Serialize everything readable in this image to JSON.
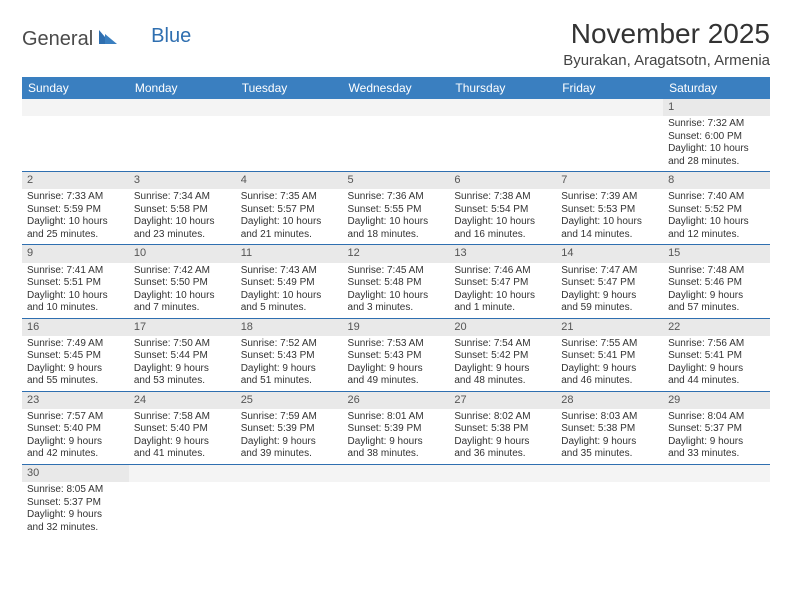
{
  "logo": {
    "part1": "General",
    "part2": "Blue"
  },
  "title": "November 2025",
  "location": "Byurakan, Aragatsotn, Armenia",
  "colors": {
    "header_bg": "#3a7fc0",
    "header_fg": "#ffffff",
    "daynum_bg": "#e9e9e9",
    "rule": "#2f6fb0",
    "logo_gray": "#4a4a4a",
    "logo_blue": "#2f6fb0"
  },
  "weekdays": [
    "Sunday",
    "Monday",
    "Tuesday",
    "Wednesday",
    "Thursday",
    "Friday",
    "Saturday"
  ],
  "weeks": [
    [
      null,
      null,
      null,
      null,
      null,
      null,
      {
        "n": "1",
        "sr": "Sunrise: 7:32 AM",
        "ss": "Sunset: 6:00 PM",
        "dl1": "Daylight: 10 hours",
        "dl2": "and 28 minutes."
      }
    ],
    [
      {
        "n": "2",
        "sr": "Sunrise: 7:33 AM",
        "ss": "Sunset: 5:59 PM",
        "dl1": "Daylight: 10 hours",
        "dl2": "and 25 minutes."
      },
      {
        "n": "3",
        "sr": "Sunrise: 7:34 AM",
        "ss": "Sunset: 5:58 PM",
        "dl1": "Daylight: 10 hours",
        "dl2": "and 23 minutes."
      },
      {
        "n": "4",
        "sr": "Sunrise: 7:35 AM",
        "ss": "Sunset: 5:57 PM",
        "dl1": "Daylight: 10 hours",
        "dl2": "and 21 minutes."
      },
      {
        "n": "5",
        "sr": "Sunrise: 7:36 AM",
        "ss": "Sunset: 5:55 PM",
        "dl1": "Daylight: 10 hours",
        "dl2": "and 18 minutes."
      },
      {
        "n": "6",
        "sr": "Sunrise: 7:38 AM",
        "ss": "Sunset: 5:54 PM",
        "dl1": "Daylight: 10 hours",
        "dl2": "and 16 minutes."
      },
      {
        "n": "7",
        "sr": "Sunrise: 7:39 AM",
        "ss": "Sunset: 5:53 PM",
        "dl1": "Daylight: 10 hours",
        "dl2": "and 14 minutes."
      },
      {
        "n": "8",
        "sr": "Sunrise: 7:40 AM",
        "ss": "Sunset: 5:52 PM",
        "dl1": "Daylight: 10 hours",
        "dl2": "and 12 minutes."
      }
    ],
    [
      {
        "n": "9",
        "sr": "Sunrise: 7:41 AM",
        "ss": "Sunset: 5:51 PM",
        "dl1": "Daylight: 10 hours",
        "dl2": "and 10 minutes."
      },
      {
        "n": "10",
        "sr": "Sunrise: 7:42 AM",
        "ss": "Sunset: 5:50 PM",
        "dl1": "Daylight: 10 hours",
        "dl2": "and 7 minutes."
      },
      {
        "n": "11",
        "sr": "Sunrise: 7:43 AM",
        "ss": "Sunset: 5:49 PM",
        "dl1": "Daylight: 10 hours",
        "dl2": "and 5 minutes."
      },
      {
        "n": "12",
        "sr": "Sunrise: 7:45 AM",
        "ss": "Sunset: 5:48 PM",
        "dl1": "Daylight: 10 hours",
        "dl2": "and 3 minutes."
      },
      {
        "n": "13",
        "sr": "Sunrise: 7:46 AM",
        "ss": "Sunset: 5:47 PM",
        "dl1": "Daylight: 10 hours",
        "dl2": "and 1 minute."
      },
      {
        "n": "14",
        "sr": "Sunrise: 7:47 AM",
        "ss": "Sunset: 5:47 PM",
        "dl1": "Daylight: 9 hours",
        "dl2": "and 59 minutes."
      },
      {
        "n": "15",
        "sr": "Sunrise: 7:48 AM",
        "ss": "Sunset: 5:46 PM",
        "dl1": "Daylight: 9 hours",
        "dl2": "and 57 minutes."
      }
    ],
    [
      {
        "n": "16",
        "sr": "Sunrise: 7:49 AM",
        "ss": "Sunset: 5:45 PM",
        "dl1": "Daylight: 9 hours",
        "dl2": "and 55 minutes."
      },
      {
        "n": "17",
        "sr": "Sunrise: 7:50 AM",
        "ss": "Sunset: 5:44 PM",
        "dl1": "Daylight: 9 hours",
        "dl2": "and 53 minutes."
      },
      {
        "n": "18",
        "sr": "Sunrise: 7:52 AM",
        "ss": "Sunset: 5:43 PM",
        "dl1": "Daylight: 9 hours",
        "dl2": "and 51 minutes."
      },
      {
        "n": "19",
        "sr": "Sunrise: 7:53 AM",
        "ss": "Sunset: 5:43 PM",
        "dl1": "Daylight: 9 hours",
        "dl2": "and 49 minutes."
      },
      {
        "n": "20",
        "sr": "Sunrise: 7:54 AM",
        "ss": "Sunset: 5:42 PM",
        "dl1": "Daylight: 9 hours",
        "dl2": "and 48 minutes."
      },
      {
        "n": "21",
        "sr": "Sunrise: 7:55 AM",
        "ss": "Sunset: 5:41 PM",
        "dl1": "Daylight: 9 hours",
        "dl2": "and 46 minutes."
      },
      {
        "n": "22",
        "sr": "Sunrise: 7:56 AM",
        "ss": "Sunset: 5:41 PM",
        "dl1": "Daylight: 9 hours",
        "dl2": "and 44 minutes."
      }
    ],
    [
      {
        "n": "23",
        "sr": "Sunrise: 7:57 AM",
        "ss": "Sunset: 5:40 PM",
        "dl1": "Daylight: 9 hours",
        "dl2": "and 42 minutes."
      },
      {
        "n": "24",
        "sr": "Sunrise: 7:58 AM",
        "ss": "Sunset: 5:40 PM",
        "dl1": "Daylight: 9 hours",
        "dl2": "and 41 minutes."
      },
      {
        "n": "25",
        "sr": "Sunrise: 7:59 AM",
        "ss": "Sunset: 5:39 PM",
        "dl1": "Daylight: 9 hours",
        "dl2": "and 39 minutes."
      },
      {
        "n": "26",
        "sr": "Sunrise: 8:01 AM",
        "ss": "Sunset: 5:39 PM",
        "dl1": "Daylight: 9 hours",
        "dl2": "and 38 minutes."
      },
      {
        "n": "27",
        "sr": "Sunrise: 8:02 AM",
        "ss": "Sunset: 5:38 PM",
        "dl1": "Daylight: 9 hours",
        "dl2": "and 36 minutes."
      },
      {
        "n": "28",
        "sr": "Sunrise: 8:03 AM",
        "ss": "Sunset: 5:38 PM",
        "dl1": "Daylight: 9 hours",
        "dl2": "and 35 minutes."
      },
      {
        "n": "29",
        "sr": "Sunrise: 8:04 AM",
        "ss": "Sunset: 5:37 PM",
        "dl1": "Daylight: 9 hours",
        "dl2": "and 33 minutes."
      }
    ],
    [
      {
        "n": "30",
        "sr": "Sunrise: 8:05 AM",
        "ss": "Sunset: 5:37 PM",
        "dl1": "Daylight: 9 hours",
        "dl2": "and 32 minutes."
      },
      null,
      null,
      null,
      null,
      null,
      null
    ]
  ]
}
